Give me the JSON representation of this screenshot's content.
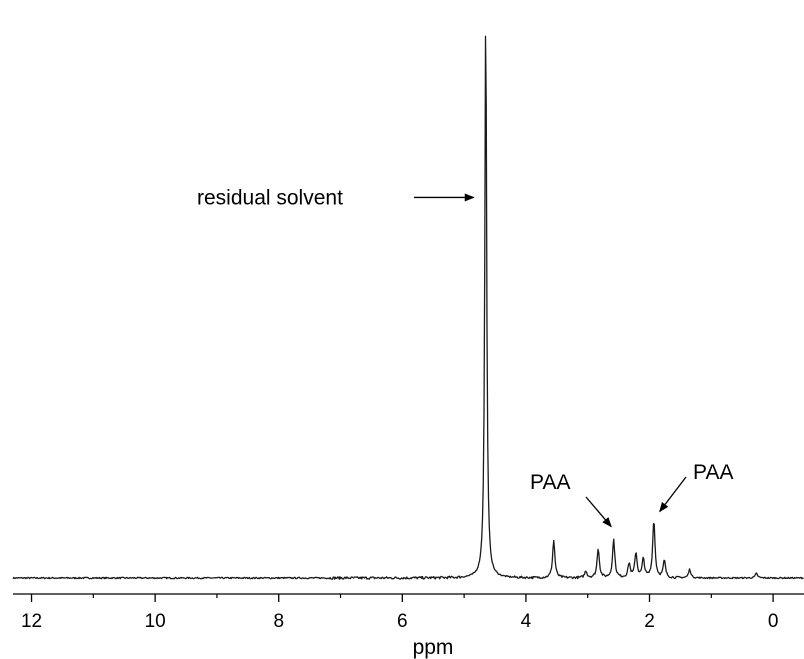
{
  "chart_data": {
    "type": "line",
    "title": "",
    "xlabel": "ppm",
    "ylabel": "",
    "xlim": [
      12.3,
      -0.5
    ],
    "x_reversed": true,
    "x_ticks": [
      12,
      10,
      8,
      6,
      4,
      2,
      0
    ],
    "x_tick_labels": [
      "12",
      "10",
      "8",
      "6",
      "4",
      "2",
      "0"
    ],
    "ylim": [
      0,
      1
    ],
    "grid": false,
    "legend": "none",
    "series": [
      {
        "color": "#1a1a1a",
        "peaks": [
          {
            "ppm": 4.65,
            "intensity": 1.0
          },
          {
            "ppm": 3.55,
            "intensity": 0.066
          },
          {
            "ppm": 3.03,
            "intensity": 0.012
          },
          {
            "ppm": 2.83,
            "intensity": 0.052
          },
          {
            "ppm": 2.58,
            "intensity": 0.067
          },
          {
            "ppm": 2.33,
            "intensity": 0.025
          },
          {
            "ppm": 2.22,
            "intensity": 0.044
          },
          {
            "ppm": 2.1,
            "intensity": 0.033
          },
          {
            "ppm": 1.93,
            "intensity": 0.102
          },
          {
            "ppm": 1.76,
            "intensity": 0.03
          },
          {
            "ppm": 1.35,
            "intensity": 0.015
          },
          {
            "ppm": 0.27,
            "intensity": 0.008
          }
        ]
      }
    ],
    "annotations": [
      {
        "text": "residual solvent",
        "target_ppm": 4.65,
        "target_intensity": 0.67
      },
      {
        "text": "PAA",
        "target_ppm": 2.62,
        "target_intensity": 0.08
      },
      {
        "text": "PAA",
        "target_ppm": 1.9,
        "target_intensity": 0.11
      }
    ]
  }
}
